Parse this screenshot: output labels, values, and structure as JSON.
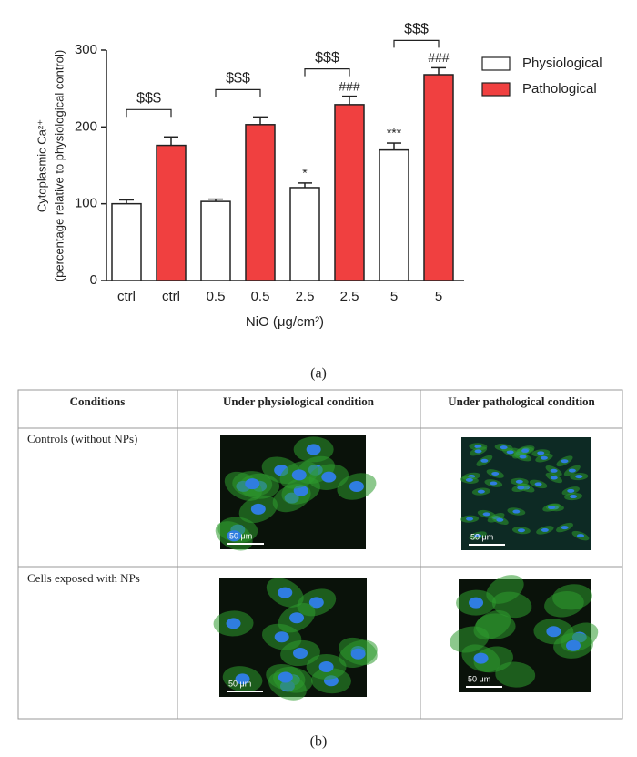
{
  "chart_data": {
    "type": "bar",
    "ylabel": [
      "Cytoplasmic Ca²⁺",
      "(percentage relative to physiological control)"
    ],
    "xlabel": "NiO (μg/cm²)",
    "categories": [
      "ctrl",
      "0.5",
      "2.5",
      "5"
    ],
    "series": [
      {
        "name": "Physiological",
        "color": "#ffffff",
        "values": [
          100,
          103,
          121,
          170
        ],
        "errors": [
          5,
          3,
          6,
          9
        ],
        "annotations": [
          null,
          null,
          "*",
          "***"
        ]
      },
      {
        "name": "Pathological",
        "color": "#f04040",
        "values": [
          176,
          203,
          229,
          268
        ],
        "errors": [
          11,
          10,
          11,
          9
        ],
        "annotations": [
          null,
          null,
          "###",
          "###"
        ]
      }
    ],
    "group_annotations": [
      "$$$",
      "$$$",
      "$$$",
      "$$$"
    ],
    "ylim": [
      0,
      300
    ],
    "yticks": [
      0,
      100,
      200,
      300
    ],
    "legend": "right"
  },
  "panel_a_label": "(a)",
  "table": {
    "headers": [
      "Conditions",
      "Under physiological condition",
      "Under pathological condition"
    ],
    "rows": [
      {
        "label": "Controls (without NPs)",
        "scale_bars": [
          "50 μm",
          "50 μm"
        ]
      },
      {
        "label": "Cells exposed with NPs",
        "scale_bars": [
          "50 μm",
          "50 μm"
        ]
      }
    ]
  },
  "panel_b_label": "(b)"
}
